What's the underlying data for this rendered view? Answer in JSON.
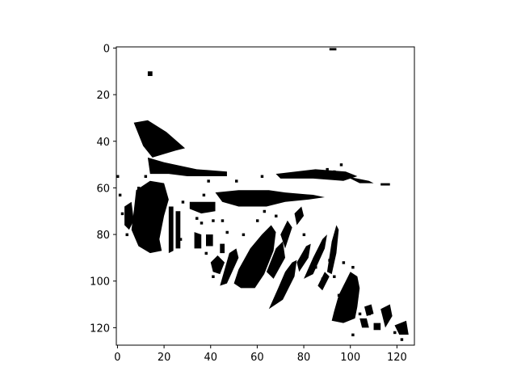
{
  "chart_data": {
    "type": "heatmap",
    "title": "",
    "xlabel": "",
    "ylabel": "",
    "xlim": [
      -0.5,
      127.5
    ],
    "ylim": [
      127.5,
      -0.5
    ],
    "colormap": "gray_r",
    "values_shown": [
      0,
      1
    ],
    "x_ticks": [
      "0",
      "20",
      "40",
      "60",
      "80",
      "100",
      "120"
    ],
    "y_ticks": [
      "0",
      "20",
      "40",
      "60",
      "80",
      "100",
      "120"
    ],
    "grid": false,
    "regions": [
      {
        "name": "dot-top",
        "points": [
          [
            91,
            0
          ],
          [
            94,
            0
          ],
          [
            94,
            1
          ],
          [
            91,
            1
          ]
        ]
      },
      {
        "name": "dot-left",
        "points": [
          [
            13,
            10
          ],
          [
            15,
            10
          ],
          [
            15,
            12
          ],
          [
            13,
            12
          ]
        ]
      },
      {
        "name": "upper-wing",
        "points": [
          [
            7,
            32
          ],
          [
            13,
            31
          ],
          [
            21,
            36
          ],
          [
            29,
            43
          ],
          [
            25,
            44
          ],
          [
            15,
            47
          ],
          [
            11,
            42
          ]
        ]
      },
      {
        "name": "upper-ridge",
        "points": [
          [
            13,
            47
          ],
          [
            20,
            49
          ],
          [
            34,
            52
          ],
          [
            47,
            53
          ],
          [
            47,
            55
          ],
          [
            30,
            55
          ],
          [
            22,
            54
          ],
          [
            14,
            54
          ]
        ]
      },
      {
        "name": "right-ridge",
        "points": [
          [
            68,
            54
          ],
          [
            85,
            52
          ],
          [
            98,
            53
          ],
          [
            103,
            55
          ],
          [
            97,
            57
          ],
          [
            84,
            56
          ],
          [
            70,
            56
          ]
        ]
      },
      {
        "name": "ridge-tail",
        "points": [
          [
            98,
            55
          ],
          [
            108,
            57
          ],
          [
            110,
            58
          ],
          [
            104,
            58
          ]
        ]
      },
      {
        "name": "center-bar",
        "points": [
          [
            42,
            62
          ],
          [
            52,
            61
          ],
          [
            65,
            61
          ],
          [
            72,
            62
          ],
          [
            84,
            63
          ],
          [
            89,
            64
          ],
          [
            82,
            65
          ],
          [
            72,
            66
          ],
          [
            64,
            68
          ],
          [
            52,
            68
          ],
          [
            45,
            66
          ]
        ]
      },
      {
        "name": "center-lobe",
        "points": [
          [
            31,
            66
          ],
          [
            42,
            66
          ],
          [
            42,
            70
          ],
          [
            36,
            71
          ],
          [
            31,
            69
          ]
        ]
      },
      {
        "name": "left-body",
        "points": [
          [
            8,
            61
          ],
          [
            14,
            57
          ],
          [
            20,
            58
          ],
          [
            22,
            65
          ],
          [
            20,
            72
          ],
          [
            18,
            82
          ],
          [
            19,
            87
          ],
          [
            14,
            88
          ],
          [
            9,
            85
          ],
          [
            6,
            78
          ],
          [
            7,
            70
          ]
        ]
      },
      {
        "name": "left-strip",
        "points": [
          [
            3,
            68
          ],
          [
            6,
            66
          ],
          [
            7,
            74
          ],
          [
            5,
            78
          ],
          [
            3,
            76
          ]
        ]
      },
      {
        "name": "stroke-a",
        "points": [
          [
            22,
            68
          ],
          [
            24,
            68
          ],
          [
            24,
            87
          ],
          [
            22,
            88
          ]
        ]
      },
      {
        "name": "stroke-b",
        "points": [
          [
            25,
            70
          ],
          [
            27,
            70
          ],
          [
            27,
            86
          ],
          [
            25,
            86
          ]
        ]
      },
      {
        "name": "stroke-c",
        "points": [
          [
            33,
            79
          ],
          [
            36,
            80
          ],
          [
            36,
            86
          ],
          [
            33,
            86
          ]
        ]
      },
      {
        "name": "dash-a",
        "points": [
          [
            38,
            80
          ],
          [
            41,
            80
          ],
          [
            41,
            85
          ],
          [
            38,
            85
          ]
        ]
      },
      {
        "name": "dash-b",
        "points": [
          [
            44,
            84
          ],
          [
            46,
            84
          ],
          [
            46,
            88
          ],
          [
            44,
            88
          ]
        ]
      },
      {
        "name": "diag-a",
        "points": [
          [
            40,
            92
          ],
          [
            43,
            89
          ],
          [
            46,
            92
          ],
          [
            44,
            97
          ],
          [
            41,
            96
          ]
        ]
      },
      {
        "name": "diag-b",
        "points": [
          [
            48,
            88
          ],
          [
            51,
            86
          ],
          [
            52,
            90
          ],
          [
            47,
            101
          ],
          [
            44,
            102
          ]
        ]
      },
      {
        "name": "diag-main",
        "points": [
          [
            52,
            95
          ],
          [
            57,
            86
          ],
          [
            62,
            80
          ],
          [
            66,
            76
          ],
          [
            68,
            79
          ],
          [
            67,
            87
          ],
          [
            63,
            97
          ],
          [
            59,
            103
          ],
          [
            53,
            103
          ],
          [
            50,
            101
          ]
        ]
      },
      {
        "name": "diag-c",
        "points": [
          [
            64,
            96
          ],
          [
            68,
            86
          ],
          [
            71,
            83
          ],
          [
            72,
            90
          ],
          [
            67,
            99
          ]
        ]
      },
      {
        "name": "diag-d",
        "points": [
          [
            70,
            80
          ],
          [
            73,
            74
          ],
          [
            75,
            77
          ],
          [
            72,
            86
          ]
        ]
      },
      {
        "name": "diag-e",
        "points": [
          [
            65,
            112
          ],
          [
            69,
            103
          ],
          [
            72,
            96
          ],
          [
            75,
            92
          ],
          [
            77,
            91
          ],
          [
            76,
            98
          ],
          [
            71,
            108
          ]
        ]
      },
      {
        "name": "diag-f",
        "points": [
          [
            77,
            92
          ],
          [
            81,
            85
          ],
          [
            83,
            84
          ],
          [
            82,
            90
          ],
          [
            78,
            96
          ]
        ]
      },
      {
        "name": "diag-g",
        "points": [
          [
            80,
            99
          ],
          [
            84,
            90
          ],
          [
            88,
            82
          ],
          [
            90,
            80
          ],
          [
            89,
            86
          ],
          [
            84,
            97
          ]
        ]
      },
      {
        "name": "diag-h",
        "points": [
          [
            90,
            96
          ],
          [
            92,
            83
          ],
          [
            94,
            76
          ],
          [
            95,
            78
          ],
          [
            94,
            88
          ],
          [
            92,
            97
          ]
        ]
      },
      {
        "name": "diag-i",
        "points": [
          [
            86,
            102
          ],
          [
            89,
            96
          ],
          [
            91,
            98
          ],
          [
            88,
            104
          ]
        ]
      },
      {
        "name": "diag-j",
        "points": [
          [
            76,
            71
          ],
          [
            79,
            68
          ],
          [
            80,
            72
          ],
          [
            77,
            76
          ]
        ]
      },
      {
        "name": "bottom-mass",
        "points": [
          [
            93,
            113
          ],
          [
            95,
            106
          ],
          [
            98,
            100
          ],
          [
            100,
            96
          ],
          [
            103,
            98
          ],
          [
            104,
            103
          ],
          [
            103,
            111
          ],
          [
            102,
            116
          ],
          [
            97,
            118
          ],
          [
            92,
            117
          ]
        ]
      },
      {
        "name": "bottom-frag-a",
        "points": [
          [
            99,
            99
          ],
          [
            102,
            99
          ],
          [
            103,
            101
          ],
          [
            100,
            102
          ]
        ]
      },
      {
        "name": "bottom-frag-b",
        "points": [
          [
            104,
            116
          ],
          [
            107,
            116
          ],
          [
            108,
            120
          ],
          [
            105,
            120
          ]
        ]
      },
      {
        "name": "bottom-frag-c",
        "points": [
          [
            110,
            118
          ],
          [
            113,
            118
          ],
          [
            113,
            121
          ],
          [
            110,
            121
          ]
        ]
      },
      {
        "name": "bottom-frag-d",
        "points": [
          [
            113,
            112
          ],
          [
            117,
            110
          ],
          [
            118,
            115
          ],
          [
            115,
            120
          ]
        ]
      },
      {
        "name": "bottom-frag-e",
        "points": [
          [
            119,
            119
          ],
          [
            124,
            117
          ],
          [
            125,
            123
          ],
          [
            121,
            123
          ]
        ]
      },
      {
        "name": "bottom-frag-f",
        "points": [
          [
            106,
            111
          ],
          [
            109,
            110
          ],
          [
            110,
            114
          ],
          [
            107,
            115
          ]
        ]
      },
      {
        "name": "mark-right-top",
        "points": [
          [
            113,
            58
          ],
          [
            117,
            58
          ],
          [
            117,
            59
          ],
          [
            113,
            59
          ]
        ]
      }
    ],
    "dots": [
      [
        51,
        57
      ],
      [
        62,
        55
      ],
      [
        39,
        57
      ],
      [
        96,
        50
      ],
      [
        90,
        52
      ],
      [
        93,
        53
      ],
      [
        20,
        63
      ],
      [
        37,
        63
      ],
      [
        41,
        74
      ],
      [
        45,
        74
      ],
      [
        47,
        79
      ],
      [
        43,
        90
      ],
      [
        38,
        88
      ],
      [
        41,
        98
      ],
      [
        60,
        86
      ],
      [
        54,
        80
      ],
      [
        60,
        74
      ],
      [
        63,
        70
      ],
      [
        68,
        72
      ],
      [
        80,
        80
      ],
      [
        93,
        98
      ],
      [
        88,
        99
      ],
      [
        92,
        93
      ],
      [
        97,
        92
      ],
      [
        91,
        91
      ],
      [
        101,
        94
      ],
      [
        95,
        106
      ],
      [
        108,
        114
      ],
      [
        122,
        125
      ],
      [
        111,
        120
      ],
      [
        119,
        122
      ],
      [
        101,
        123
      ],
      [
        0,
        55
      ],
      [
        1,
        63
      ],
      [
        2,
        71
      ],
      [
        4,
        80
      ],
      [
        27,
        82
      ],
      [
        36,
        75
      ],
      [
        34,
        73
      ],
      [
        28,
        66
      ],
      [
        12,
        55
      ],
      [
        9,
        60
      ],
      [
        59,
        101
      ],
      [
        75,
        96
      ],
      [
        85,
        94
      ],
      [
        104,
        114
      ]
    ]
  }
}
